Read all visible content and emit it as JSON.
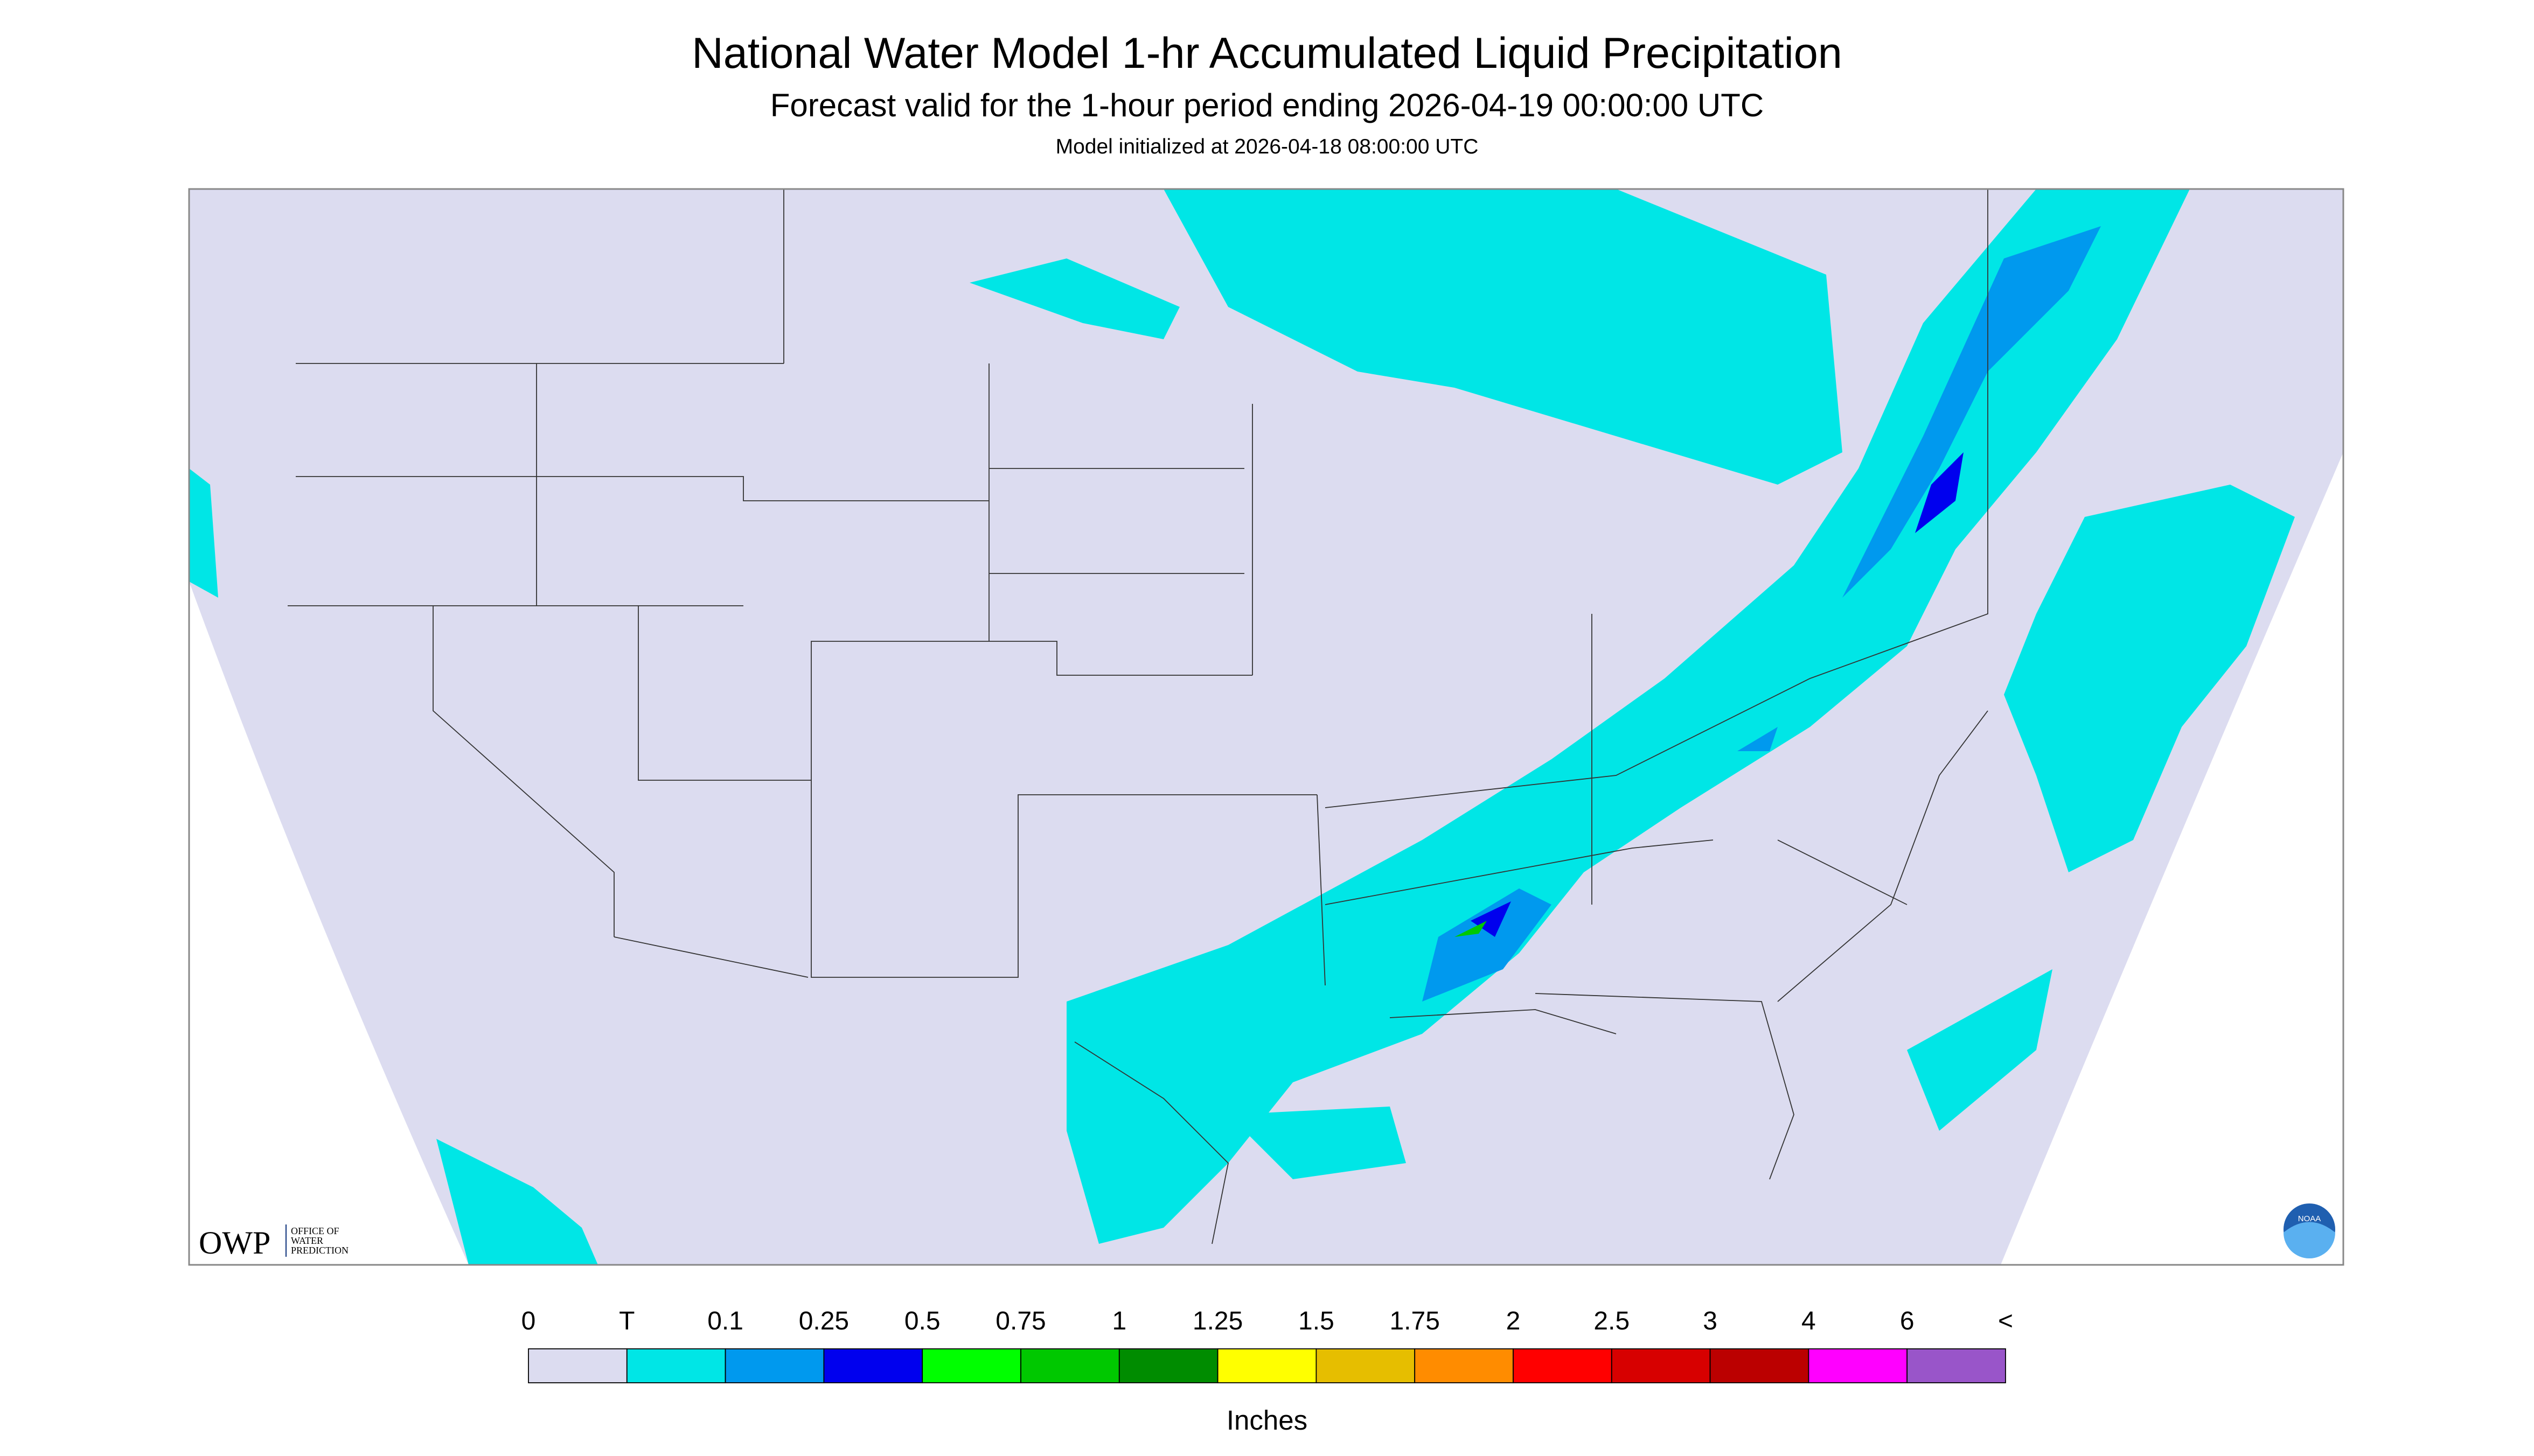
{
  "header": {
    "title": "National Water Model 1-hr Accumulated Liquid Precipitation",
    "subtitle": "Forecast valid for the 1-hour period ending 2026-04-19 00:00:00 UTC",
    "initialized": "Model initialized at 2026-04-18 08:00:00 UTC"
  },
  "logos": {
    "owp": "OWP",
    "owp_lines": [
      "OFFICE OF",
      "WATER",
      "PREDICTION"
    ],
    "noaa": "NOAA"
  },
  "colorbar": {
    "labels": [
      "0",
      "T",
      "0.1",
      "0.25",
      "0.5",
      "0.75",
      "1",
      "1.25",
      "1.5",
      "1.75",
      "2",
      "2.5",
      "3",
      "4",
      "6",
      "<"
    ],
    "colors": [
      "#dcdcf0",
      "#00e6e6",
      "#0099ee",
      "#0000ee",
      "#00ff00",
      "#00c800",
      "#008c00",
      "#ffff00",
      "#e6be00",
      "#ff8c00",
      "#ff0000",
      "#d70000",
      "#bb0000",
      "#ff00ff",
      "#9955c9"
    ],
    "unit": "Inches"
  }
}
